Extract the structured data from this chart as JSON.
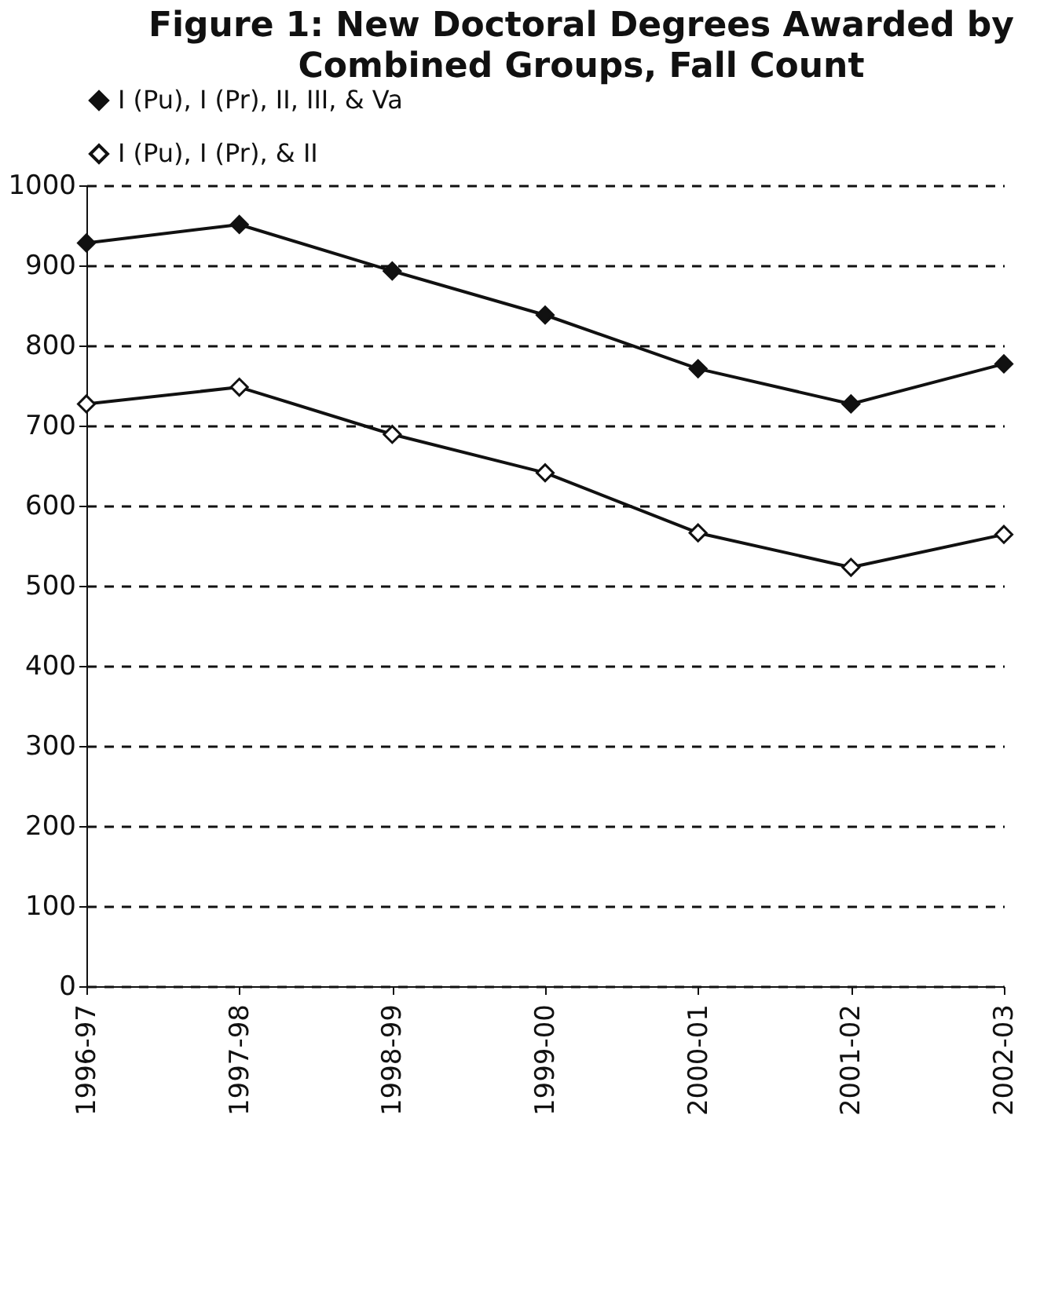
{
  "chart_data": {
    "type": "line",
    "title": "Figure 1:  New Doctoral Degrees Awarded by Combined Groups, Fall Count",
    "categories": [
      "1996-97",
      "1997-98",
      "1998-99",
      "1999-00",
      "2000-01",
      "2001-02",
      "2002-03"
    ],
    "series": [
      {
        "name": "I (Pu), I (Pr), II, III, & Va",
        "color": "#111111",
        "values": [
          928,
          951,
          893,
          838,
          771,
          727,
          777
        ]
      },
      {
        "name": "I (Pu), I (Pr), & II",
        "color": "#111111",
        "values": [
          727,
          748,
          689,
          641,
          566,
          523,
          564
        ]
      }
    ],
    "ylim": [
      0,
      1000
    ],
    "yticks": [
      0,
      100,
      200,
      300,
      400,
      500,
      600,
      700,
      800,
      900,
      1000
    ],
    "grid": "y",
    "legend": "top",
    "marker": "diamond",
    "line_style": "solid"
  }
}
